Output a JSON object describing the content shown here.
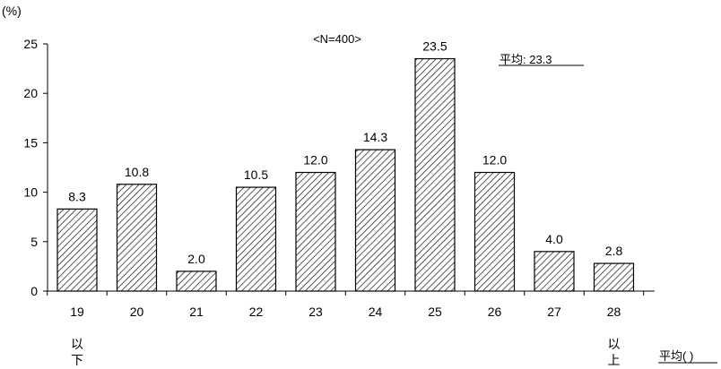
{
  "chart_data": {
    "type": "bar",
    "y_unit": "(%)",
    "sample_note": "<N=400>",
    "average_label": "平均: 23.3",
    "categories": [
      "19",
      "20",
      "21",
      "22",
      "23",
      "24",
      "25",
      "26",
      "27",
      "28"
    ],
    "category_suffix": {
      "19": "以下",
      "28": "以上"
    },
    "values": [
      8.3,
      10.8,
      2.0,
      10.5,
      12.0,
      14.3,
      23.5,
      12.0,
      4.0,
      2.8
    ],
    "value_labels": [
      "8.3",
      "10.8",
      "2.0",
      "10.5",
      "12.0",
      "14.3",
      "23.5",
      "12.0",
      "4.0",
      "2.8"
    ],
    "y_ticks": [
      0,
      5,
      10,
      15,
      20,
      25
    ],
    "ylim": [
      0,
      25
    ],
    "x_axis_end_label": "平均(  )",
    "bar_fill": "hatched",
    "grid": false,
    "legend": "none"
  },
  "colors": {
    "bar_stroke": "#000000",
    "hatch": "#000000",
    "background": "#ffffff"
  }
}
